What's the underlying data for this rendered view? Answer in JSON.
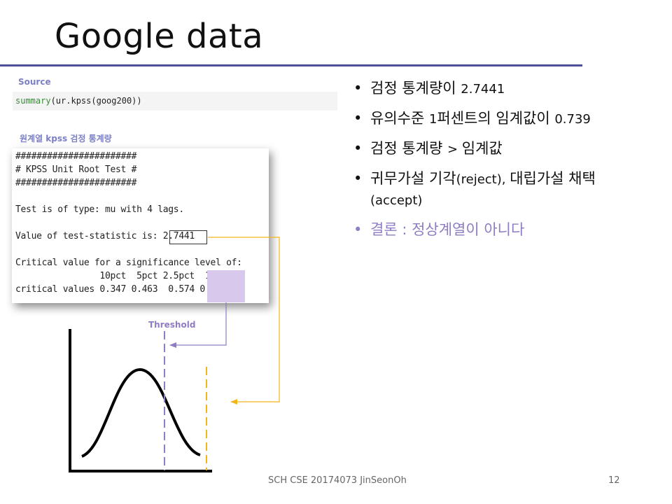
{
  "slide": {
    "title": "Google data",
    "source_label": "Source",
    "code": {
      "fn": "summary",
      "args": "(ur.kpss(goog200))"
    },
    "series_label": "원계열 kpss 검정 통계량",
    "console": [
      "#######################",
      "# KPSS Unit Root Test #",
      "#######################",
      "Test is of type: mu with 4 lags.",
      "Value of test-statistic is: 2.7441",
      "Critical value for a significance level of:",
      "                10pct  5pct 2.5pct  1pct",
      "critical values 0.347 0.463  0.574 0.739"
    ],
    "threshold_label": "Threshold",
    "bullets": [
      {
        "bullet": "•",
        "text": "검정 통계량이 ",
        "num": "2.7441"
      },
      {
        "bullet": "•",
        "text": "유의수준 ",
        "num": "1",
        "text2": "퍼센트의 임계값이 ",
        "num2": "0.739"
      },
      {
        "bullet": "•",
        "text": "검정 통계량 ",
        "num": "> ",
        "text2": "임계값"
      },
      {
        "bullet": "•",
        "text": "귀무가설 기각",
        "num": "(reject), ",
        "text2": "대립가설 채택",
        "num2": "(accept)"
      },
      {
        "bullet": "•",
        "text": "결론 : 정상계열이 아니다"
      }
    ],
    "footer": "SCH CSE 20174073 JinSeonOh",
    "page_number": "12",
    "colors": {
      "accent": "#4f4f99",
      "purple": "#8f7cc2",
      "highlight": "#d8c8ec",
      "yellow": "#f2b51d"
    }
  }
}
